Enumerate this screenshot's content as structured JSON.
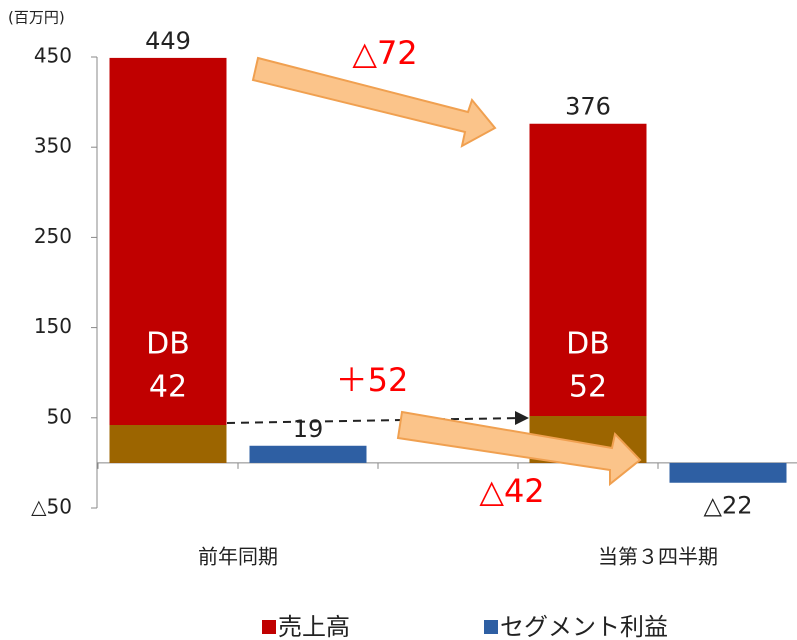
{
  "chart_data": {
    "type": "bar",
    "unit_label": "(百万円)",
    "categories": [
      "前年同期",
      "当第３四半期"
    ],
    "series": [
      {
        "name": "売上高",
        "color": "#c00000",
        "values": [
          449,
          376
        ]
      },
      {
        "name": "セグメント利益",
        "color": "#2e5fa3",
        "values": [
          19,
          -22
        ],
        "value_labels": [
          "19",
          "△22"
        ]
      }
    ],
    "db_segment": {
      "label": "DB",
      "color": "#9c6500",
      "values": [
        42,
        52
      ]
    },
    "annotations": [
      "△72",
      "＋52",
      "△42"
    ],
    "ylim": [
      -50,
      450
    ],
    "yticks": [
      {
        "value": -50,
        "label": "△50"
      },
      50,
      150,
      250,
      350,
      450
    ],
    "grid": false
  }
}
